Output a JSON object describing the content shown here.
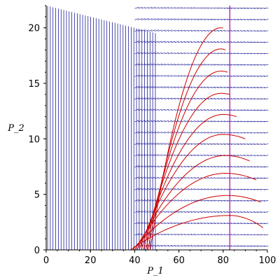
{
  "chart_data": {
    "type": "line",
    "title": "",
    "xlabel": "P_1",
    "ylabel": "P_2",
    "xlim": [
      0,
      100
    ],
    "ylim": [
      0,
      22
    ],
    "x_ticks": [
      0,
      20,
      40,
      60,
      80,
      100
    ],
    "y_ticks": [
      0,
      5,
      10,
      15,
      20
    ],
    "grid": false,
    "colors": {
      "direction_field": "#00008b",
      "trajectories": "#cc0000",
      "reference_line": "#aa00aa"
    },
    "reference_line": {
      "x": 83
    },
    "trajectories": [
      {
        "x_start": 38,
        "peak": [
          83,
          3.1
        ],
        "x_end": 98,
        "y_end": 2.0
      },
      {
        "x_start": 39,
        "peak": [
          82,
          4.9
        ],
        "x_end": 97,
        "y_end": 4.3
      },
      {
        "x_start": 40,
        "peak": [
          81,
          6.9
        ],
        "x_end": 95,
        "y_end": 6.3
      },
      {
        "x_start": 41,
        "peak": [
          81,
          8.5
        ],
        "x_end": 92,
        "y_end": 8.0
      },
      {
        "x_start": 42,
        "peak": [
          80,
          10.4
        ],
        "x_end": 90,
        "y_end": 10.0
      },
      {
        "x_start": 43,
        "peak": [
          80,
          12.2
        ],
        "x_end": 86,
        "y_end": 12.0
      },
      {
        "x_start": 44,
        "peak": [
          79,
          14.1
        ],
        "x_end": 83,
        "y_end": 14.0
      },
      {
        "x_start": 45,
        "peak": [
          79,
          16.1
        ],
        "x_end": 82,
        "y_end": 16.0
      },
      {
        "x_start": 46,
        "peak": [
          79,
          18.1
        ],
        "x_end": 81,
        "y_end": 18.0
      },
      {
        "x_start": 47,
        "peak": [
          79,
          20.0
        ],
        "x_end": 80,
        "y_end": 20.0
      }
    ]
  }
}
